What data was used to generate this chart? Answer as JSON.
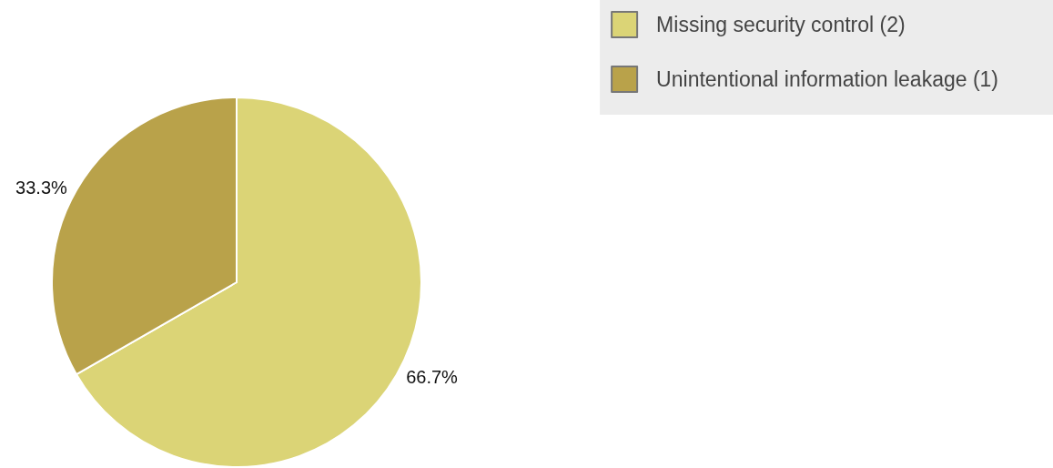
{
  "chart_data": {
    "type": "pie",
    "categories": [
      "Missing security control (2)",
      "Unintentional information leakage (1)"
    ],
    "values": [
      66.7,
      33.3
    ],
    "colors": [
      "#dbd476",
      "#b9a24a"
    ],
    "value_labels": [
      "66.7%",
      "33.3%"
    ],
    "legend": "top right"
  }
}
